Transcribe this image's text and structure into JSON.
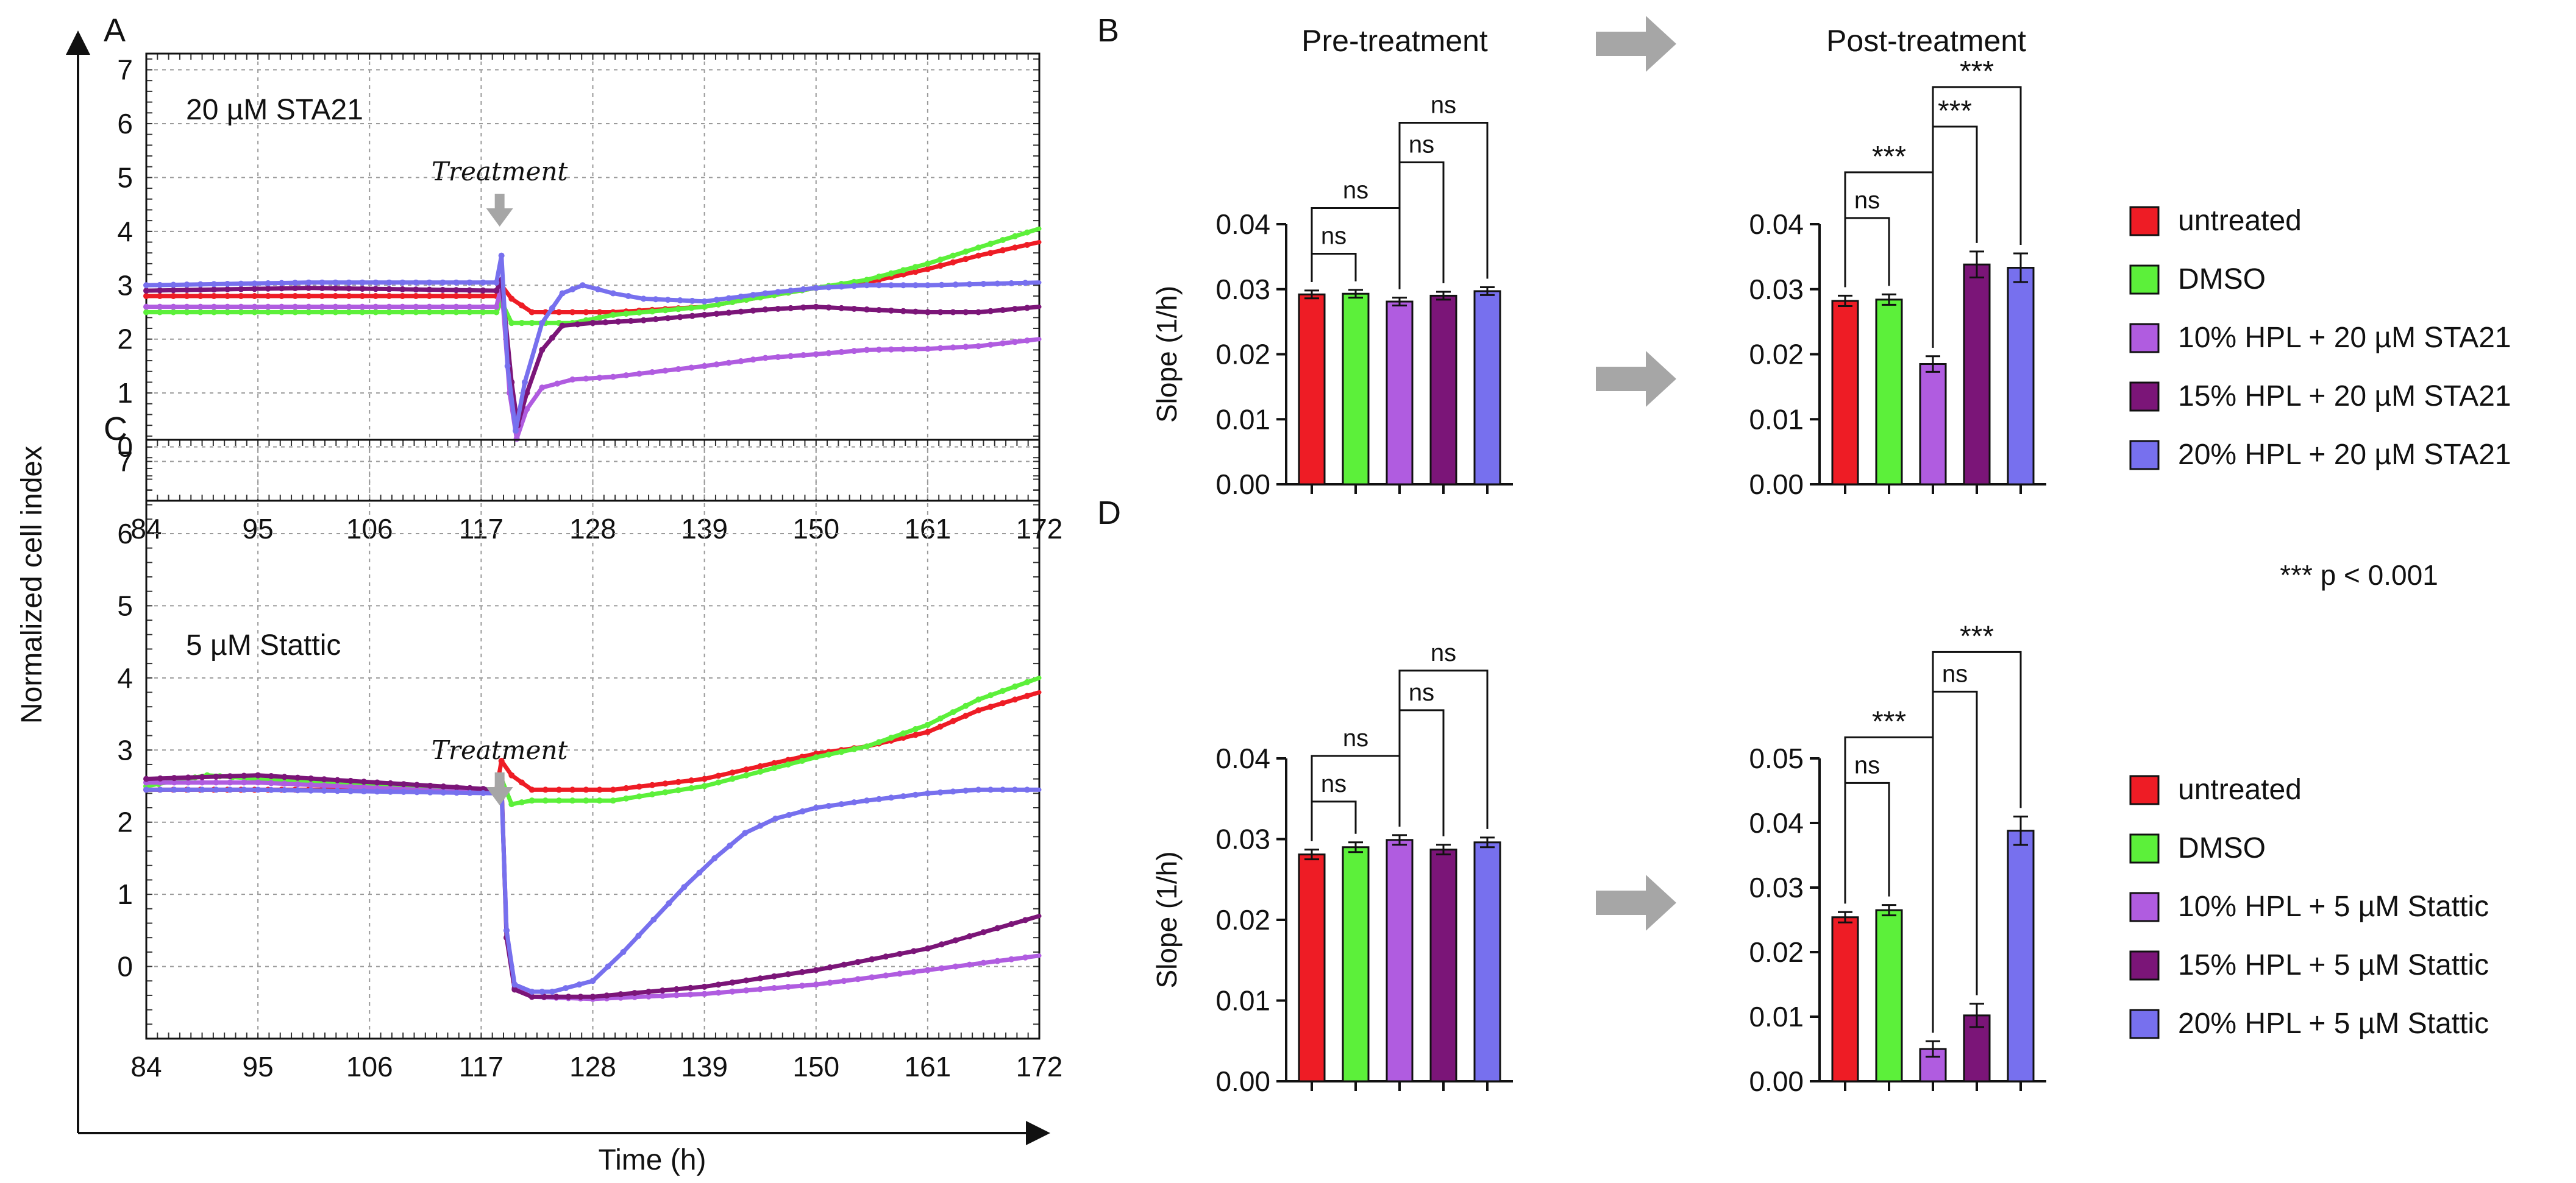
{
  "figure": {
    "panel_letters": [
      "A",
      "B",
      "C",
      "D"
    ],
    "y_axis_label": "Normalized cell index",
    "x_axis_label": "Time (h)",
    "treatment_label": "Treatment",
    "pre_header": "Pre-treatment",
    "post_header": "Post-treatment",
    "pvalue_note": "*** p < 0.001",
    "bar_ylabel": "Slope (1/h)"
  },
  "colors": {
    "untreated": "#ee1c25",
    "dmso": "#5cf03a",
    "hpl10": "#b05ce0",
    "hpl15": "#7b1578",
    "hpl20": "#7770ee",
    "arrow": "#a6a6a6",
    "grid": "#9a9a9a"
  },
  "chart_data": [
    {
      "id": "A",
      "type": "line",
      "annotation": "20 µM STA21",
      "xlim": [
        84,
        172
      ],
      "ylim": [
        -1,
        7.3
      ],
      "xticks": [
        84,
        95,
        106,
        117,
        128,
        139,
        150,
        161,
        172
      ],
      "yticks": [
        0,
        1,
        2,
        3,
        4,
        5,
        6,
        7
      ],
      "treatment_x": 119,
      "series": [
        {
          "name": "untreated",
          "color_key": "untreated",
          "points": [
            [
              84,
              2.8
            ],
            [
              100,
              2.8
            ],
            [
              118.5,
              2.8
            ],
            [
              119,
              3.0
            ],
            [
              120,
              2.75
            ],
            [
              122,
              2.5
            ],
            [
              130,
              2.5
            ],
            [
              139,
              2.6
            ],
            [
              150,
              2.95
            ],
            [
              155,
              3.05
            ],
            [
              161,
              3.3
            ],
            [
              166,
              3.55
            ],
            [
              172,
              3.8
            ]
          ]
        },
        {
          "name": "DMSO",
          "color_key": "dmso",
          "points": [
            [
              84,
              2.5
            ],
            [
              100,
              2.5
            ],
            [
              118.5,
              2.5
            ],
            [
              119,
              2.7
            ],
            [
              120,
              2.3
            ],
            [
              122,
              2.3
            ],
            [
              126,
              2.3
            ],
            [
              130,
              2.45
            ],
            [
              139,
              2.6
            ],
            [
              150,
              2.95
            ],
            [
              155,
              3.1
            ],
            [
              161,
              3.4
            ],
            [
              166,
              3.7
            ],
            [
              172,
              4.05
            ]
          ]
        },
        {
          "name": "10% HPL + 20 µM STA21",
          "color_key": "hpl10",
          "points": [
            [
              84,
              2.6
            ],
            [
              100,
              2.6
            ],
            [
              118.5,
              2.6
            ],
            [
              119,
              3.0
            ],
            [
              119.8,
              1.0
            ],
            [
              120.5,
              0.15
            ],
            [
              121.5,
              0.7
            ],
            [
              123,
              1.1
            ],
            [
              126,
              1.25
            ],
            [
              130,
              1.3
            ],
            [
              139,
              1.5
            ],
            [
              145,
              1.65
            ],
            [
              150,
              1.72
            ],
            [
              155,
              1.8
            ],
            [
              161,
              1.82
            ],
            [
              166,
              1.87
            ],
            [
              172,
              2.0
            ]
          ]
        },
        {
          "name": "15% HPL + 20 µM STA21",
          "color_key": "hpl15",
          "points": [
            [
              84,
              2.9
            ],
            [
              100,
              2.95
            ],
            [
              118.5,
              2.9
            ],
            [
              119,
              3.1
            ],
            [
              120,
              1.2
            ],
            [
              120.6,
              0.4
            ],
            [
              121.5,
              1.0
            ],
            [
              123,
              1.8
            ],
            [
              125,
              2.25
            ],
            [
              128,
              2.3
            ],
            [
              133,
              2.35
            ],
            [
              139,
              2.45
            ],
            [
              145,
              2.55
            ],
            [
              150,
              2.6
            ],
            [
              155,
              2.55
            ],
            [
              161,
              2.5
            ],
            [
              166,
              2.5
            ],
            [
              172,
              2.6
            ]
          ]
        },
        {
          "name": "20% HPL + 20 µM STA21",
          "color_key": "hpl20",
          "points": [
            [
              84,
              3.0
            ],
            [
              100,
              3.05
            ],
            [
              118.5,
              3.05
            ],
            [
              119,
              3.55
            ],
            [
              119.6,
              1.5
            ],
            [
              120.4,
              0.3
            ],
            [
              121.3,
              1.2
            ],
            [
              123,
              2.3
            ],
            [
              125,
              2.85
            ],
            [
              127,
              3.0
            ],
            [
              130,
              2.85
            ],
            [
              133,
              2.75
            ],
            [
              139,
              2.7
            ],
            [
              145,
              2.85
            ],
            [
              150,
              2.95
            ],
            [
              155,
              3.0
            ],
            [
              161,
              3.0
            ],
            [
              172,
              3.05
            ]
          ]
        }
      ]
    },
    {
      "id": "C",
      "type": "line",
      "annotation": "5 µM Stattic",
      "xlim": [
        84,
        172
      ],
      "ylim": [
        -1,
        7.3
      ],
      "xticks": [
        84,
        95,
        106,
        117,
        128,
        139,
        150,
        161,
        172
      ],
      "yticks": [
        0,
        1,
        2,
        3,
        4,
        5,
        6,
        7
      ],
      "treatment_x": 119,
      "series": [
        {
          "name": "untreated",
          "color_key": "untreated",
          "points": [
            [
              84,
              2.45
            ],
            [
              100,
              2.45
            ],
            [
              118.5,
              2.45
            ],
            [
              119,
              2.85
            ],
            [
              120,
              2.65
            ],
            [
              122,
              2.45
            ],
            [
              130,
              2.45
            ],
            [
              139,
              2.6
            ],
            [
              150,
              2.95
            ],
            [
              155,
              3.05
            ],
            [
              161,
              3.25
            ],
            [
              166,
              3.55
            ],
            [
              172,
              3.8
            ]
          ]
        },
        {
          "name": "DMSO",
          "color_key": "dmso",
          "points": [
            [
              84,
              2.5
            ],
            [
              90,
              2.65
            ],
            [
              100,
              2.55
            ],
            [
              118.5,
              2.4
            ],
            [
              119,
              2.6
            ],
            [
              120,
              2.25
            ],
            [
              122,
              2.3
            ],
            [
              130,
              2.3
            ],
            [
              139,
              2.5
            ],
            [
              150,
              2.9
            ],
            [
              155,
              3.05
            ],
            [
              161,
              3.35
            ],
            [
              166,
              3.7
            ],
            [
              172,
              4.0
            ]
          ]
        },
        {
          "name": "10% HPL + 5 µM Stattic",
          "color_key": "hpl10",
          "points": [
            [
              84,
              2.55
            ],
            [
              95,
              2.55
            ],
            [
              118.5,
              2.4
            ],
            [
              119,
              2.5
            ],
            [
              119.5,
              0.5
            ],
            [
              120.3,
              -0.3
            ],
            [
              122,
              -0.42
            ],
            [
              128,
              -0.45
            ],
            [
              139,
              -0.38
            ],
            [
              150,
              -0.25
            ],
            [
              161,
              -0.05
            ],
            [
              172,
              0.15
            ]
          ]
        },
        {
          "name": "15% HPL + 5 µM Stattic",
          "color_key": "hpl15",
          "points": [
            [
              84,
              2.6
            ],
            [
              95,
              2.65
            ],
            [
              118.5,
              2.45
            ],
            [
              119,
              2.55
            ],
            [
              119.5,
              0.4
            ],
            [
              120.3,
              -0.32
            ],
            [
              122,
              -0.42
            ],
            [
              128,
              -0.42
            ],
            [
              139,
              -0.28
            ],
            [
              150,
              -0.05
            ],
            [
              161,
              0.25
            ],
            [
              172,
              0.7
            ]
          ]
        },
        {
          "name": "20% HPL + 5 µM Stattic",
          "color_key": "hpl20",
          "points": [
            [
              84,
              2.45
            ],
            [
              95,
              2.45
            ],
            [
              118.5,
              2.4
            ],
            [
              119,
              2.45
            ],
            [
              119.5,
              0.5
            ],
            [
              120.3,
              -0.25
            ],
            [
              122,
              -0.35
            ],
            [
              124,
              -0.35
            ],
            [
              128,
              -0.2
            ],
            [
              131,
              0.2
            ],
            [
              134,
              0.65
            ],
            [
              137,
              1.1
            ],
            [
              140,
              1.5
            ],
            [
              143,
              1.85
            ],
            [
              146,
              2.05
            ],
            [
              150,
              2.2
            ],
            [
              155,
              2.3
            ],
            [
              161,
              2.4
            ],
            [
              166,
              2.45
            ],
            [
              172,
              2.45
            ]
          ]
        }
      ]
    },
    {
      "id": "B_pre",
      "type": "bar",
      "ylabel": "Slope (1/h)",
      "ylim": [
        0,
        0.04
      ],
      "yticks": [
        "0.00",
        "0.01",
        "0.02",
        "0.03",
        "0.04"
      ],
      "values": [
        0.0292,
        0.0293,
        0.0281,
        0.029,
        0.0297
      ],
      "errors": [
        0.0006,
        0.0006,
        0.0006,
        0.0006,
        0.0006
      ],
      "color_keys": [
        "untreated",
        "dmso",
        "hpl10",
        "hpl15",
        "hpl20"
      ],
      "brackets": [
        {
          "from": 0,
          "to": 1,
          "label": "ns"
        },
        {
          "from": 0,
          "to": 2,
          "label": "ns"
        },
        {
          "from": 2,
          "to": 3,
          "label": "ns"
        },
        {
          "from": 2,
          "to": 4,
          "label": "ns"
        }
      ]
    },
    {
      "id": "B_post",
      "type": "bar",
      "ylim": [
        0,
        0.04
      ],
      "yticks": [
        "0.00",
        "0.01",
        "0.02",
        "0.03",
        "0.04"
      ],
      "values": [
        0.0282,
        0.0284,
        0.0185,
        0.0338,
        0.0333
      ],
      "errors": [
        0.0008,
        0.0008,
        0.0012,
        0.002,
        0.0022
      ],
      "color_keys": [
        "untreated",
        "dmso",
        "hpl10",
        "hpl15",
        "hpl20"
      ],
      "brackets": [
        {
          "from": 0,
          "to": 1,
          "label": "ns"
        },
        {
          "from": 0,
          "to": 2,
          "label": "***"
        },
        {
          "from": 2,
          "to": 3,
          "label": "***"
        },
        {
          "from": 2,
          "to": 4,
          "label": "***"
        }
      ],
      "legend": [
        "untreated",
        "DMSO",
        "10% HPL + 20 µM STA21",
        "15% HPL + 20 µM STA21",
        "20% HPL + 20 µM STA21"
      ]
    },
    {
      "id": "D_pre",
      "type": "bar",
      "ylabel": "Slope (1/h)",
      "ylim": [
        0,
        0.04
      ],
      "yticks": [
        "0.00",
        "0.01",
        "0.02",
        "0.03",
        "0.04"
      ],
      "values": [
        0.0281,
        0.029,
        0.0299,
        0.0287,
        0.0296
      ],
      "errors": [
        0.0006,
        0.0006,
        0.0006,
        0.0006,
        0.0006
      ],
      "color_keys": [
        "untreated",
        "dmso",
        "hpl10",
        "hpl15",
        "hpl20"
      ],
      "brackets": [
        {
          "from": 0,
          "to": 1,
          "label": "ns"
        },
        {
          "from": 0,
          "to": 2,
          "label": "ns"
        },
        {
          "from": 2,
          "to": 3,
          "label": "ns"
        },
        {
          "from": 2,
          "to": 4,
          "label": "ns"
        }
      ]
    },
    {
      "id": "D_post",
      "type": "bar",
      "ylim": [
        0,
        0.05
      ],
      "yticks": [
        "0.00",
        "0.01",
        "0.02",
        "0.03",
        "0.04",
        "0.05"
      ],
      "values": [
        0.0254,
        0.0265,
        0.005,
        0.0102,
        0.0388
      ],
      "errors": [
        0.0008,
        0.0008,
        0.0012,
        0.0018,
        0.0022
      ],
      "color_keys": [
        "untreated",
        "dmso",
        "hpl10",
        "hpl15",
        "hpl20"
      ],
      "brackets": [
        {
          "from": 0,
          "to": 1,
          "label": "ns"
        },
        {
          "from": 0,
          "to": 2,
          "label": "***"
        },
        {
          "from": 2,
          "to": 3,
          "label": "ns"
        },
        {
          "from": 2,
          "to": 4,
          "label": "***"
        }
      ],
      "legend": [
        "untreated",
        "DMSO",
        "10% HPL + 5 µM Stattic",
        "15% HPL + 5 µM Stattic",
        "20% HPL + 5 µM Stattic"
      ]
    }
  ]
}
